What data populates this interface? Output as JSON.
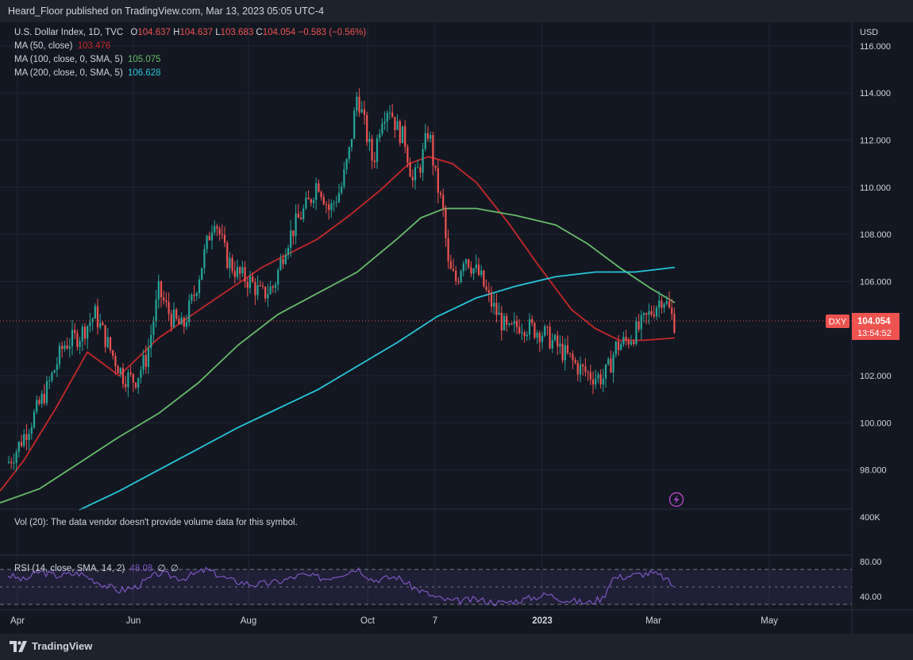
{
  "header": {
    "published": "Heard_Floor published on TradingView.com, Mar 13, 2023 05:05 UTC-4"
  },
  "legend": {
    "symbol": "U.S. Dollar Index, 1D, TVC",
    "o_label": "O",
    "o_value": "104.637",
    "h_label": "H",
    "h_value": "104.637",
    "l_label": "L",
    "l_value": "103.683",
    "c_label": "C",
    "c_value": "104.054",
    "change": "−0.583 (−0.56%)",
    "ma50_label": "MA (50, close)",
    "ma50_value": "103.476",
    "ma100_label": "MA (100, close, 0, SMA, 5)",
    "ma100_value": "105.075",
    "ma200_label": "MA (200, close, 0, SMA, 5)",
    "ma200_value": "106.628"
  },
  "colors": {
    "up": "#26a69a",
    "down": "#ef5350",
    "ma50": "#c62828",
    "ma100": "#66bb6a",
    "ma200": "#26c6da",
    "rsi": "#7e57c2",
    "background": "#131722",
    "grid": "#232632"
  },
  "price_axis": {
    "currency": "USD",
    "ticks": [
      "116.000",
      "114.000",
      "112.000",
      "110.000",
      "108.000",
      "106.000",
      "102.000",
      "100.000",
      "98.000"
    ],
    "tag_symbol": "DXY",
    "tag_price": "104.054",
    "tag_countdown": "13:54:52"
  },
  "volume_pane": {
    "message": "Vol (20): The data vendor doesn't provide volume data for this symbol.",
    "axis_label": "400K"
  },
  "rsi_pane": {
    "label": "RSI (14, close, SMA, 14, 2)",
    "value": "48.08",
    "extra1": "∅",
    "extra2": "∅",
    "axis_ticks": [
      "80.00",
      "40.00"
    ]
  },
  "time_axis": {
    "labels": [
      "Apr",
      "Jun",
      "Aug",
      "Oct",
      "7",
      "2023",
      "Mar",
      "May"
    ]
  },
  "footer": {
    "brand": "TradingView"
  },
  "icons": {
    "flash": "flash-icon",
    "logo": "tradingview-logo-icon"
  },
  "chart_data": {
    "type": "candlestick",
    "symbol": "DXY",
    "ylim": [
      96.3,
      116.4
    ],
    "last_close": 104.054,
    "series": [
      {
        "name": "MA (50, close)",
        "points": [
          [
            0,
            97.1
          ],
          [
            30,
            98.4
          ],
          [
            70,
            100.6
          ],
          [
            110,
            103.0
          ],
          [
            150,
            102.0
          ],
          [
            200,
            103.6
          ],
          [
            260,
            105.0
          ],
          [
            330,
            106.6
          ],
          [
            400,
            107.8
          ],
          [
            440,
            108.8
          ],
          [
            480,
            109.9
          ],
          [
            515,
            111.0
          ],
          [
            540,
            111.3
          ],
          [
            570,
            111.0
          ],
          [
            600,
            110.2
          ],
          [
            640,
            108.5
          ],
          [
            680,
            106.6
          ],
          [
            720,
            104.8
          ],
          [
            750,
            104.0
          ],
          [
            780,
            103.5
          ],
          [
            810,
            103.5
          ],
          [
            850,
            103.6
          ]
        ]
      },
      {
        "name": "MA (100, close, 0, SMA, 5)",
        "points": [
          [
            0,
            96.6
          ],
          [
            50,
            97.2
          ],
          [
            100,
            98.3
          ],
          [
            150,
            99.4
          ],
          [
            200,
            100.4
          ],
          [
            250,
            101.7
          ],
          [
            300,
            103.3
          ],
          [
            350,
            104.6
          ],
          [
            400,
            105.5
          ],
          [
            450,
            106.4
          ],
          [
            500,
            107.8
          ],
          [
            530,
            108.7
          ],
          [
            560,
            109.1
          ],
          [
            600,
            109.1
          ],
          [
            650,
            108.8
          ],
          [
            700,
            108.4
          ],
          [
            740,
            107.6
          ],
          [
            780,
            106.6
          ],
          [
            820,
            105.7
          ],
          [
            850,
            105.1
          ]
        ]
      },
      {
        "name": "MA (200, close, 0, SMA, 5)",
        "points": [
          [
            100,
            96.3
          ],
          [
            150,
            97.1
          ],
          [
            200,
            98.0
          ],
          [
            250,
            98.9
          ],
          [
            300,
            99.8
          ],
          [
            350,
            100.6
          ],
          [
            400,
            101.4
          ],
          [
            450,
            102.4
          ],
          [
            500,
            103.4
          ],
          [
            550,
            104.5
          ],
          [
            600,
            105.3
          ],
          [
            650,
            105.8
          ],
          [
            700,
            106.2
          ],
          [
            750,
            106.4
          ],
          [
            800,
            106.4
          ],
          [
            850,
            106.6
          ]
        ]
      }
    ],
    "ohlc_path": [
      [
        10,
        98.3
      ],
      [
        20,
        98.8
      ],
      [
        40,
        100.1
      ],
      [
        60,
        101.5
      ],
      [
        80,
        103.3
      ],
      [
        100,
        103.7
      ],
      [
        120,
        104.6
      ],
      [
        140,
        103.0
      ],
      [
        155,
        102.0
      ],
      [
        170,
        101.8
      ],
      [
        185,
        102.8
      ],
      [
        200,
        105.6
      ],
      [
        215,
        104.5
      ],
      [
        230,
        104.0
      ],
      [
        245,
        105.5
      ],
      [
        260,
        107.5
      ],
      [
        270,
        108.8
      ],
      [
        285,
        107.0
      ],
      [
        300,
        106.3
      ],
      [
        315,
        106.0
      ],
      [
        330,
        105.4
      ],
      [
        345,
        105.8
      ],
      [
        360,
        107.6
      ],
      [
        375,
        108.6
      ],
      [
        390,
        109.4
      ],
      [
        400,
        110.3
      ],
      [
        415,
        109.0
      ],
      [
        430,
        110.0
      ],
      [
        440,
        111.5
      ],
      [
        450,
        114.0
      ],
      [
        460,
        112.5
      ],
      [
        470,
        111.0
      ],
      [
        480,
        113.0
      ],
      [
        490,
        113.5
      ],
      [
        500,
        112.5
      ],
      [
        510,
        112.0
      ],
      [
        520,
        110.2
      ],
      [
        530,
        111.0
      ],
      [
        540,
        112.5
      ],
      [
        548,
        110.5
      ],
      [
        558,
        109.0
      ],
      [
        565,
        106.5
      ],
      [
        575,
        106.0
      ],
      [
        585,
        107.2
      ],
      [
        595,
        106.6
      ],
      [
        605,
        106.2
      ],
      [
        615,
        105.3
      ],
      [
        625,
        104.7
      ],
      [
        640,
        103.8
      ],
      [
        655,
        104.2
      ],
      [
        670,
        104.0
      ],
      [
        685,
        103.8
      ],
      [
        700,
        103.3
      ],
      [
        715,
        102.8
      ],
      [
        730,
        102.3
      ],
      [
        745,
        102.0
      ],
      [
        760,
        101.9
      ],
      [
        768,
        102.4
      ],
      [
        775,
        103.2
      ],
      [
        790,
        103.5
      ],
      [
        805,
        104.0
      ],
      [
        820,
        104.7
      ],
      [
        835,
        105.4
      ],
      [
        845,
        104.6
      ],
      [
        852,
        104.05
      ]
    ],
    "rsi_path": [
      [
        10,
        66
      ],
      [
        30,
        60
      ],
      [
        50,
        70
      ],
      [
        70,
        65
      ],
      [
        100,
        68
      ],
      [
        130,
        55
      ],
      [
        150,
        48
      ],
      [
        170,
        52
      ],
      [
        200,
        68
      ],
      [
        230,
        62
      ],
      [
        260,
        72
      ],
      [
        290,
        60
      ],
      [
        320,
        55
      ],
      [
        350,
        58
      ],
      [
        380,
        66
      ],
      [
        410,
        62
      ],
      [
        440,
        70
      ],
      [
        450,
        74
      ],
      [
        470,
        60
      ],
      [
        500,
        64
      ],
      [
        520,
        52
      ],
      [
        550,
        40
      ],
      [
        570,
        36
      ],
      [
        600,
        38
      ],
      [
        630,
        34
      ],
      [
        660,
        38
      ],
      [
        690,
        44
      ],
      [
        710,
        38
      ],
      [
        740,
        34
      ],
      [
        760,
        40
      ],
      [
        770,
        62
      ],
      [
        800,
        66
      ],
      [
        820,
        68
      ],
      [
        835,
        64
      ],
      [
        850,
        52
      ]
    ],
    "rsi_ylim": [
      28,
      84
    ],
    "rsi_levels": [
      70,
      30
    ]
  }
}
